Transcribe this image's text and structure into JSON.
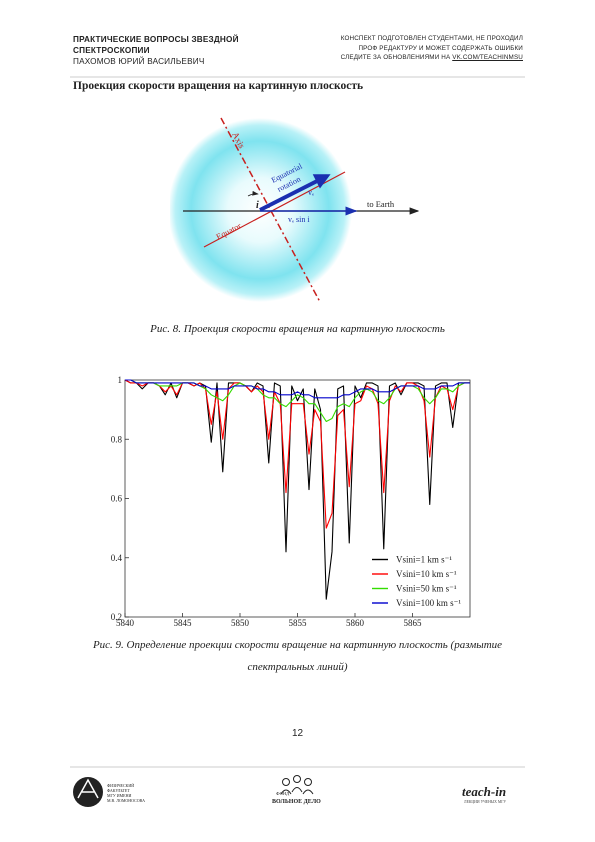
{
  "header": {
    "title_lines": [
      "ПРАКТИЧЕСКИЕ ВОПРОСЫ ЗВЕЗДНОЙ",
      "СПЕКТРОСКОПИИ"
    ],
    "author": "ПАХОМОВ ЮРИЙ ВАСИЛЬЕВИЧ",
    "notice_lines": [
      "КОНСПЕКТ ПОДГОТОВЛЕН СТУДЕНТАМИ, НЕ ПРОХОДИЛ",
      "ПРОФ РЕДАКТУРУ И МОЖЕТ СОДЕРЖАТЬ ОШИБКИ",
      "СЛЕДИТЕ ЗА ОБНОВЛЕНИЯМИ НА "
    ],
    "notice_link": "VK.COM/TEACHINMSU"
  },
  "section_heading": "Проекция скорости вращения на картинную плоскость",
  "figure8": {
    "labels": {
      "axis": "Axis",
      "equatorial_rotation": [
        "Equatorial",
        "rotation"
      ],
      "ve": "vₑ",
      "ve_sin_i": "vₑ  sin i",
      "to_earth": "to Earth",
      "equator": "Equator",
      "angle": "i"
    },
    "caption": "Рис. 8. Проекция скорости вращения на картинную плоскость"
  },
  "chart_data": {
    "type": "line",
    "x": [
      5840,
      5840.5,
      5841,
      5841.5,
      5842,
      5842.5,
      5843,
      5843.5,
      5844,
      5844.5,
      5845,
      5845.5,
      5846,
      5846.5,
      5847,
      5847.5,
      5848,
      5848.5,
      5849,
      5849.5,
      5850,
      5850.5,
      5851,
      5851.5,
      5852,
      5852.5,
      5853,
      5853.5,
      5854,
      5854.5,
      5855,
      5855.5,
      5856,
      5856.5,
      5857,
      5857.5,
      5858,
      5858.5,
      5859,
      5859.5,
      5860,
      5860.5,
      5861,
      5861.5,
      5862,
      5862.5,
      5863,
      5863.5,
      5864,
      5864.5,
      5865,
      5865.5,
      5866,
      5866.5,
      5867,
      5867.5,
      5868,
      5868.5,
      5869,
      5869.5,
      5870
    ],
    "series": [
      {
        "name": "Vsini=1 km s⁻¹",
        "color": "#000000",
        "values": [
          1.0,
          0.99,
          0.99,
          0.97,
          0.99,
          0.99,
          0.98,
          0.95,
          0.99,
          0.94,
          0.99,
          0.99,
          0.98,
          0.99,
          0.98,
          0.79,
          0.99,
          0.69,
          0.99,
          0.99,
          0.99,
          0.98,
          0.96,
          0.99,
          0.98,
          0.72,
          0.99,
          0.98,
          0.42,
          0.98,
          0.93,
          0.97,
          0.63,
          0.97,
          0.9,
          0.26,
          0.42,
          0.97,
          0.98,
          0.45,
          0.98,
          0.94,
          0.99,
          0.99,
          0.98,
          0.43,
          0.98,
          0.99,
          0.95,
          0.99,
          0.99,
          0.99,
          0.98,
          0.58,
          0.98,
          0.99,
          0.99,
          0.84,
          0.99,
          0.99,
          0.99
        ]
      },
      {
        "name": "Vsini=10 km s⁻¹",
        "color": "#ff0000",
        "values": [
          1.0,
          0.99,
          0.99,
          0.98,
          0.99,
          0.99,
          0.98,
          0.96,
          0.98,
          0.95,
          0.99,
          0.99,
          0.98,
          0.99,
          0.97,
          0.85,
          0.96,
          0.8,
          0.97,
          0.99,
          0.99,
          0.98,
          0.96,
          0.98,
          0.96,
          0.8,
          0.96,
          0.92,
          0.62,
          0.92,
          0.92,
          0.92,
          0.75,
          0.9,
          0.86,
          0.5,
          0.55,
          0.88,
          0.9,
          0.64,
          0.92,
          0.93,
          0.98,
          0.97,
          0.92,
          0.62,
          0.93,
          0.98,
          0.96,
          0.99,
          0.99,
          0.98,
          0.93,
          0.74,
          0.94,
          0.98,
          0.97,
          0.9,
          0.98,
          0.99,
          0.99
        ]
      },
      {
        "name": "Vsini=50 km s⁻¹",
        "color": "#33dd00",
        "values": [
          1.0,
          1.0,
          0.99,
          0.99,
          0.99,
          0.99,
          0.98,
          0.98,
          0.98,
          0.98,
          0.99,
          0.99,
          0.99,
          0.98,
          0.97,
          0.95,
          0.94,
          0.93,
          0.95,
          0.98,
          0.99,
          0.98,
          0.98,
          0.97,
          0.95,
          0.94,
          0.94,
          0.92,
          0.91,
          0.93,
          0.95,
          0.94,
          0.92,
          0.92,
          0.89,
          0.86,
          0.87,
          0.91,
          0.92,
          0.91,
          0.94,
          0.96,
          0.97,
          0.96,
          0.93,
          0.92,
          0.94,
          0.97,
          0.98,
          0.98,
          0.98,
          0.97,
          0.94,
          0.92,
          0.94,
          0.97,
          0.97,
          0.96,
          0.98,
          0.99,
          0.99
        ]
      },
      {
        "name": "Vsini=100 km s⁻¹",
        "color": "#0000cc",
        "values": [
          1.0,
          1.0,
          0.99,
          0.99,
          0.99,
          0.99,
          0.99,
          0.99,
          0.99,
          0.99,
          0.99,
          0.99,
          0.99,
          0.98,
          0.98,
          0.97,
          0.97,
          0.97,
          0.97,
          0.98,
          0.98,
          0.98,
          0.98,
          0.97,
          0.97,
          0.96,
          0.96,
          0.95,
          0.95,
          0.95,
          0.96,
          0.95,
          0.95,
          0.94,
          0.94,
          0.94,
          0.94,
          0.94,
          0.95,
          0.95,
          0.96,
          0.97,
          0.97,
          0.97,
          0.96,
          0.96,
          0.96,
          0.97,
          0.98,
          0.98,
          0.98,
          0.98,
          0.97,
          0.97,
          0.97,
          0.98,
          0.98,
          0.98,
          0.99,
          0.99,
          0.99
        ]
      }
    ],
    "xlim": [
      5840,
      5870
    ],
    "ylim": [
      0.2,
      1
    ],
    "xticks": [
      5840,
      5845,
      5850,
      5855,
      5860,
      5865
    ],
    "yticks": [
      0.2,
      0.4,
      0.6,
      0.8,
      1
    ],
    "legend": "lower right"
  },
  "figure9_caption": "Рис. 9. Определение проекции скорости вращение на картинную плоскость (размытие спектральных линий)",
  "page_number": "12",
  "footer": {
    "msu_lines": [
      "ФИЗИЧЕСКИЙ",
      "ФАКУЛЬТЕТ",
      "МГУ ИМЕНИ",
      "М.В. ЛОМОНОСОВА"
    ],
    "fund_lines": [
      "ФОНД",
      "ВОЛЬНОЕ ДЕЛО"
    ],
    "teachin": "teach-in",
    "teachin_tagline": "ЛЕКЦИИ УЧЕНЫХ МГУ"
  }
}
